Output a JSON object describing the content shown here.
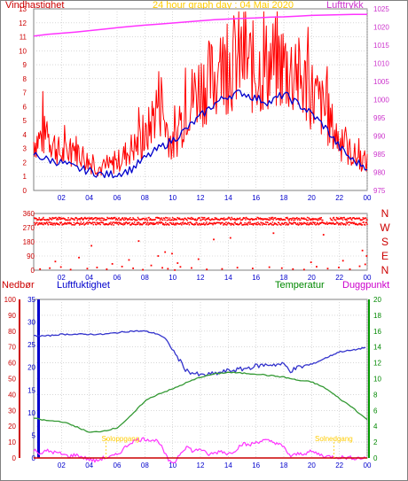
{
  "header": {
    "wind_label": "Vindhastighet",
    "title": "24 hour graph day : 04 Mai 2020",
    "pressure_label": "Lufttrykk"
  },
  "labels": {
    "precip": "Nedbør",
    "humidity": "Luftfuktighet",
    "temperature": "Temperatur",
    "dewpoint": "Duggpunkt",
    "sunrise": "Soloppgang",
    "sunset": "Solnedgang"
  },
  "colors": {
    "wind_gust": "#ff0000",
    "wind_avg": "#0000cc",
    "pressure": "#ff33ff",
    "direction": "#ff0000",
    "humidity": "#3333cc",
    "temperature": "#339933",
    "dewpoint": "#ff33ff",
    "precip": "#cc0000",
    "title": "#ffcc00",
    "sun": "#ffcc00",
    "grid": "#c0c0c0"
  },
  "chart_data": [
    {
      "type": "line",
      "name": "wind-pressure",
      "x_ticks": [
        "02",
        "04",
        "06",
        "08",
        "10",
        "12",
        "14",
        "16",
        "18",
        "20",
        "22",
        "00"
      ],
      "ylim_left": [
        0,
        13
      ],
      "yticks_left": [
        "0",
        "1",
        "2",
        "3",
        "4",
        "5",
        "6",
        "7",
        "8",
        "9",
        "10",
        "11",
        "12",
        "13"
      ],
      "ylim_right": [
        975,
        1025
      ],
      "yticks_right": [
        "975",
        "980",
        "985",
        "990",
        "995",
        "1000",
        "1005",
        "1010",
        "1015",
        "1020",
        "1025"
      ],
      "series": [
        {
          "axis": "left",
          "x": [
            0,
            1,
            2,
            3,
            4,
            5,
            6,
            7,
            8,
            9,
            10,
            11,
            12,
            13,
            14,
            15,
            16,
            17,
            18,
            19,
            20,
            21,
            22,
            23,
            24
          ],
          "values": [
            3.5,
            4.0,
            2.5,
            3.0,
            2.0,
            1.5,
            2.0,
            3.0,
            3.5,
            6.5,
            3.0,
            6.0,
            7.5,
            8.0,
            9.0,
            9.5,
            8.5,
            9.0,
            9.0,
            8.0,
            7.0,
            5.5,
            3.5,
            2.5,
            2.0
          ]
        },
        {
          "axis": "left",
          "x": [
            0,
            1,
            2,
            3,
            4,
            5,
            6,
            7,
            8,
            9,
            10,
            11,
            12,
            13,
            14,
            15,
            16,
            17,
            18,
            19,
            20,
            21,
            22,
            23,
            24
          ],
          "values": [
            2.6,
            2.2,
            2.0,
            1.6,
            1.4,
            1.1,
            1.2,
            1.5,
            2.3,
            3.0,
            3.6,
            4.4,
            5.3,
            6.2,
            6.8,
            7.0,
            6.6,
            6.3,
            6.9,
            6.2,
            5.5,
            4.5,
            3.1,
            2.1,
            1.7
          ]
        },
        {
          "axis": "right",
          "x": [
            0,
            1,
            2,
            3,
            4,
            5,
            6,
            7,
            8,
            9,
            10,
            11,
            12,
            13,
            14,
            15,
            16,
            17,
            18,
            19,
            20,
            21,
            22,
            23,
            24
          ],
          "values": [
            1017.5,
            1018.0,
            1018.3,
            1018.6,
            1019.0,
            1019.4,
            1019.8,
            1020.2,
            1020.5,
            1020.8,
            1021.1,
            1021.4,
            1021.7,
            1022.0,
            1022.2,
            1022.4,
            1022.5,
            1022.7,
            1022.8,
            1023.0,
            1023.2,
            1023.3,
            1023.4,
            1023.5,
            1023.5
          ]
        }
      ]
    },
    {
      "type": "scatter",
      "name": "wind-direction",
      "x_ticks": [
        "02",
        "04",
        "06",
        "08",
        "10",
        "12",
        "14",
        "16",
        "18",
        "20",
        "22",
        "00"
      ],
      "ylim": [
        0,
        360
      ],
      "yticks": [
        "0",
        "90",
        "180",
        "270",
        "360"
      ],
      "compass": [
        "N",
        "W",
        "S",
        "E",
        "N"
      ],
      "dense_bands": [
        {
          "from": 0,
          "to": 24,
          "value": 330
        },
        {
          "from": 0,
          "to": 24,
          "value": 300
        }
      ],
      "x": [
        0.4,
        1.1,
        1.9,
        2.6,
        3.8,
        4.5,
        5.2,
        6.3,
        7.1,
        7.8,
        8.4,
        9.2,
        9.6,
        10.1,
        10.5,
        11.3,
        12.4,
        13.5,
        14.6,
        15.7,
        16.9,
        17.8,
        18.6,
        19.4,
        20.3,
        21.1,
        21.9,
        22.7,
        23.4,
        23.8,
        1.5,
        3.2,
        5.6,
        6.8,
        8.9,
        9.9,
        10.3,
        11.8,
        14.1,
        17.2,
        19.9,
        22.2,
        23.6,
        4.1,
        7.5,
        9.4,
        12.9,
        20.8,
        23.9
      ],
      "values": [
        12,
        18,
        25,
        9,
        15,
        22,
        11,
        28,
        17,
        8,
        35,
        20,
        14,
        6,
        26,
        19,
        10,
        13,
        21,
        16,
        24,
        18,
        12,
        9,
        27,
        15,
        22,
        11,
        30,
        42,
        60,
        85,
        45,
        70,
        95,
        110,
        50,
        75,
        210,
        240,
        55,
        65,
        130,
        160,
        190,
        120,
        200,
        230,
        95
      ]
    },
    {
      "type": "line",
      "name": "humidity-temperature",
      "x_ticks": [
        "02",
        "04",
        "06",
        "08",
        "10",
        "12",
        "14",
        "16",
        "18",
        "20",
        "22",
        "00"
      ],
      "ylim_precip": [
        0,
        100
      ],
      "yticks_precip": [
        "0",
        "10",
        "20",
        "30",
        "40",
        "50",
        "60",
        "70",
        "80",
        "90",
        "100"
      ],
      "ylim_humidity": [
        0,
        35
      ],
      "yticks_humidity": [
        "0",
        "5",
        "10",
        "15",
        "20",
        "25",
        "30",
        "35"
      ],
      "ylim_temperature": [
        0,
        20
      ],
      "yticks_temperature": [
        "0",
        "2",
        "4",
        "6",
        "8",
        "10",
        "12",
        "14",
        "16",
        "18",
        "20"
      ],
      "series": [
        {
          "axis": "precip",
          "x": [
            0,
            1,
            2,
            3,
            4,
            5,
            6,
            7,
            8,
            9,
            9.5,
            10,
            11,
            12,
            13,
            14,
            15,
            16,
            17,
            18,
            18.5,
            19,
            20,
            21,
            22,
            23,
            24
          ],
          "values": [
            77,
            77,
            78,
            78,
            78,
            78,
            79,
            80,
            80,
            78,
            75,
            68,
            55,
            52,
            53,
            55,
            56,
            58,
            59,
            59,
            55,
            57,
            59,
            63,
            67,
            68,
            70
          ]
        },
        {
          "axis": "temperature",
          "x": [
            0,
            1,
            2,
            3,
            4,
            5,
            6,
            7,
            8,
            9,
            10,
            11,
            12,
            13,
            14,
            15,
            16,
            17,
            18,
            19,
            20,
            21,
            22,
            23,
            24
          ],
          "values": [
            5.0,
            4.7,
            4.6,
            4.0,
            3.2,
            3.4,
            3.8,
            5.3,
            7.2,
            8.1,
            8.7,
            9.5,
            10.2,
            10.6,
            10.8,
            10.7,
            10.6,
            10.4,
            10.2,
            9.8,
            9.6,
            8.8,
            7.5,
            6.3,
            4.8
          ]
        },
        {
          "axis": "temperature",
          "x": [
            0,
            0.5,
            1,
            1.5,
            2,
            2.5,
            3,
            3.5,
            4,
            4.5,
            5,
            5.5,
            6,
            6.5,
            7,
            7.5,
            8,
            8.5,
            9,
            9.3,
            9.6,
            10,
            10.5,
            11,
            11.5,
            12,
            12.5,
            13,
            13.5,
            14,
            14.5,
            15,
            15.5,
            16,
            16.5,
            17,
            17.5,
            18,
            18.5,
            19,
            19.5,
            20,
            21,
            22,
            23,
            24
          ],
          "values": [
            1.0,
            0.6,
            0.9,
            0.7,
            0.5,
            0.2,
            0.4,
            0.1,
            -0.2,
            -0.4,
            0.0,
            0.1,
            0.4,
            1.2,
            2.0,
            2.3,
            2.4,
            2.3,
            2.1,
            1.0,
            0.0,
            -1.0,
            0.5,
            1.5,
            0.8,
            1.2,
            0.4,
            0.6,
            0.9,
            0.5,
            1.0,
            1.8,
            1.6,
            2.0,
            2.2,
            2.1,
            1.9,
            1.3,
            0.2,
            0.5,
            0.6,
            0.8,
            0.2,
            0.1,
            0.0,
            0.0
          ]
        },
        {
          "axis": "precip",
          "x": [
            0,
            24
          ],
          "values": [
            0,
            0
          ]
        }
      ],
      "sunrise_hour": 5.2,
      "sunset_hour": 21.6
    }
  ]
}
